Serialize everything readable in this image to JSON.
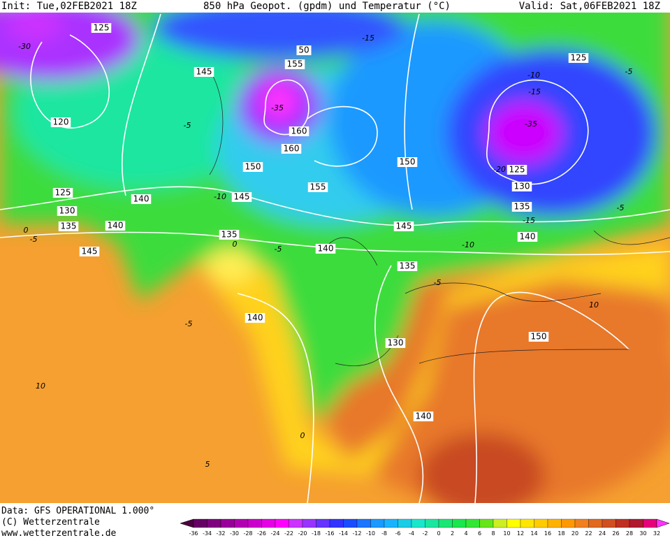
{
  "header": {
    "init": "Init: Tue,02FEB2021 18Z",
    "title": "850 hPa Geopot. (gpdm) und Temperatur (°C)",
    "valid": "Valid: Sat,06FEB2021 18Z"
  },
  "footer": {
    "lines": [
      "Data: GFS OPERATIONAL 1.000°",
      "(C) Wetterzentrale",
      "www.wetterzentrale.de"
    ]
  },
  "contours": {
    "geopotential": [
      "125",
      "50",
      "155",
      "145",
      "120",
      "160",
      "160",
      "150",
      "155",
      "150",
      "125",
      "130",
      "125",
      "135",
      "140",
      "125",
      "130",
      "140",
      "145",
      "135",
      "140",
      "145",
      "145",
      "135",
      "140",
      "135",
      "140",
      "130",
      "150",
      "140"
    ],
    "temperature": [
      "-30",
      "-15",
      "-10",
      "-15",
      "-35",
      "-35",
      "-20",
      "-5",
      "-10",
      "-5",
      "-5",
      "-15",
      "-10",
      "-5",
      "0",
      "-5",
      "0",
      "-5",
      "-5",
      "10",
      "10",
      "5",
      "0"
    ]
  },
  "colorbar": {
    "labels": [
      "-36",
      "-34",
      "-32",
      "-30",
      "-28",
      "-26",
      "-24",
      "-22",
      "-20",
      "-18",
      "-16",
      "-14",
      "-12",
      "-10",
      "-8",
      "-6",
      "-4",
      "-2",
      "0",
      "2",
      "4",
      "6",
      "8",
      "10",
      "12",
      "14",
      "16",
      "18",
      "20",
      "22",
      "24",
      "26",
      "28",
      "30",
      "32"
    ],
    "colors": [
      "#4b0040",
      "#660066",
      "#7f007f",
      "#990099",
      "#b300b3",
      "#cc00cc",
      "#e600e6",
      "#ff00ff",
      "#cc33ff",
      "#9933ff",
      "#6633ff",
      "#3333ff",
      "#1a4dff",
      "#1a75ff",
      "#1a99ff",
      "#1ab3ff",
      "#1acce6",
      "#1ae6cc",
      "#1ae6a0",
      "#1ae673",
      "#1ae64d",
      "#33e633",
      "#66e61a",
      "#ccee22",
      "#ffff00",
      "#ffe600",
      "#ffcc00",
      "#ffb300",
      "#ff9900",
      "#f08020",
      "#e06a20",
      "#d05020",
      "#c03020",
      "#b01830",
      "#e6007a",
      "#ff33ff"
    ]
  }
}
